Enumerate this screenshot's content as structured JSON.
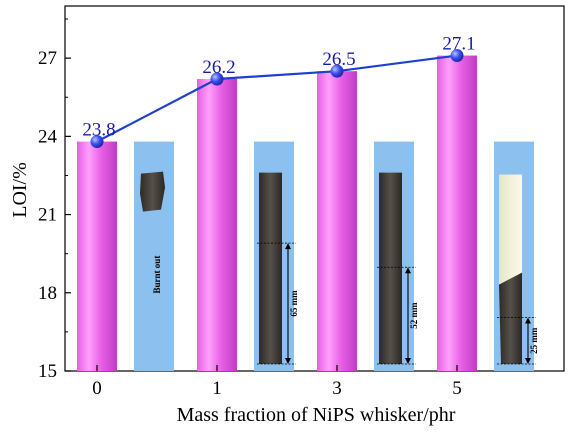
{
  "chart_data": {
    "type": "bar",
    "categories": [
      "0",
      "1",
      "3",
      "5"
    ],
    "values": [
      23.8,
      26.2,
      26.5,
      27.1
    ],
    "data_labels": [
      "23.8",
      "26.2",
      "26.5",
      "27.1"
    ],
    "xlabel": "Mass fraction of NiPS whisker/phr",
    "ylabel": "LOI/%",
    "ylim": [
      15,
      29
    ],
    "yticks": [
      15,
      18,
      21,
      24,
      27
    ],
    "grid": false,
    "bar_color": "#e25ee0",
    "line_color": "#1f3fd0",
    "marker_color": "#3b4ff0",
    "label_color": "#1a1aa8",
    "photo_background": "#8cc0ee",
    "photo_annotations": [
      "Burnt out",
      "65 mm",
      "52 mm",
      "25 mm"
    ]
  }
}
